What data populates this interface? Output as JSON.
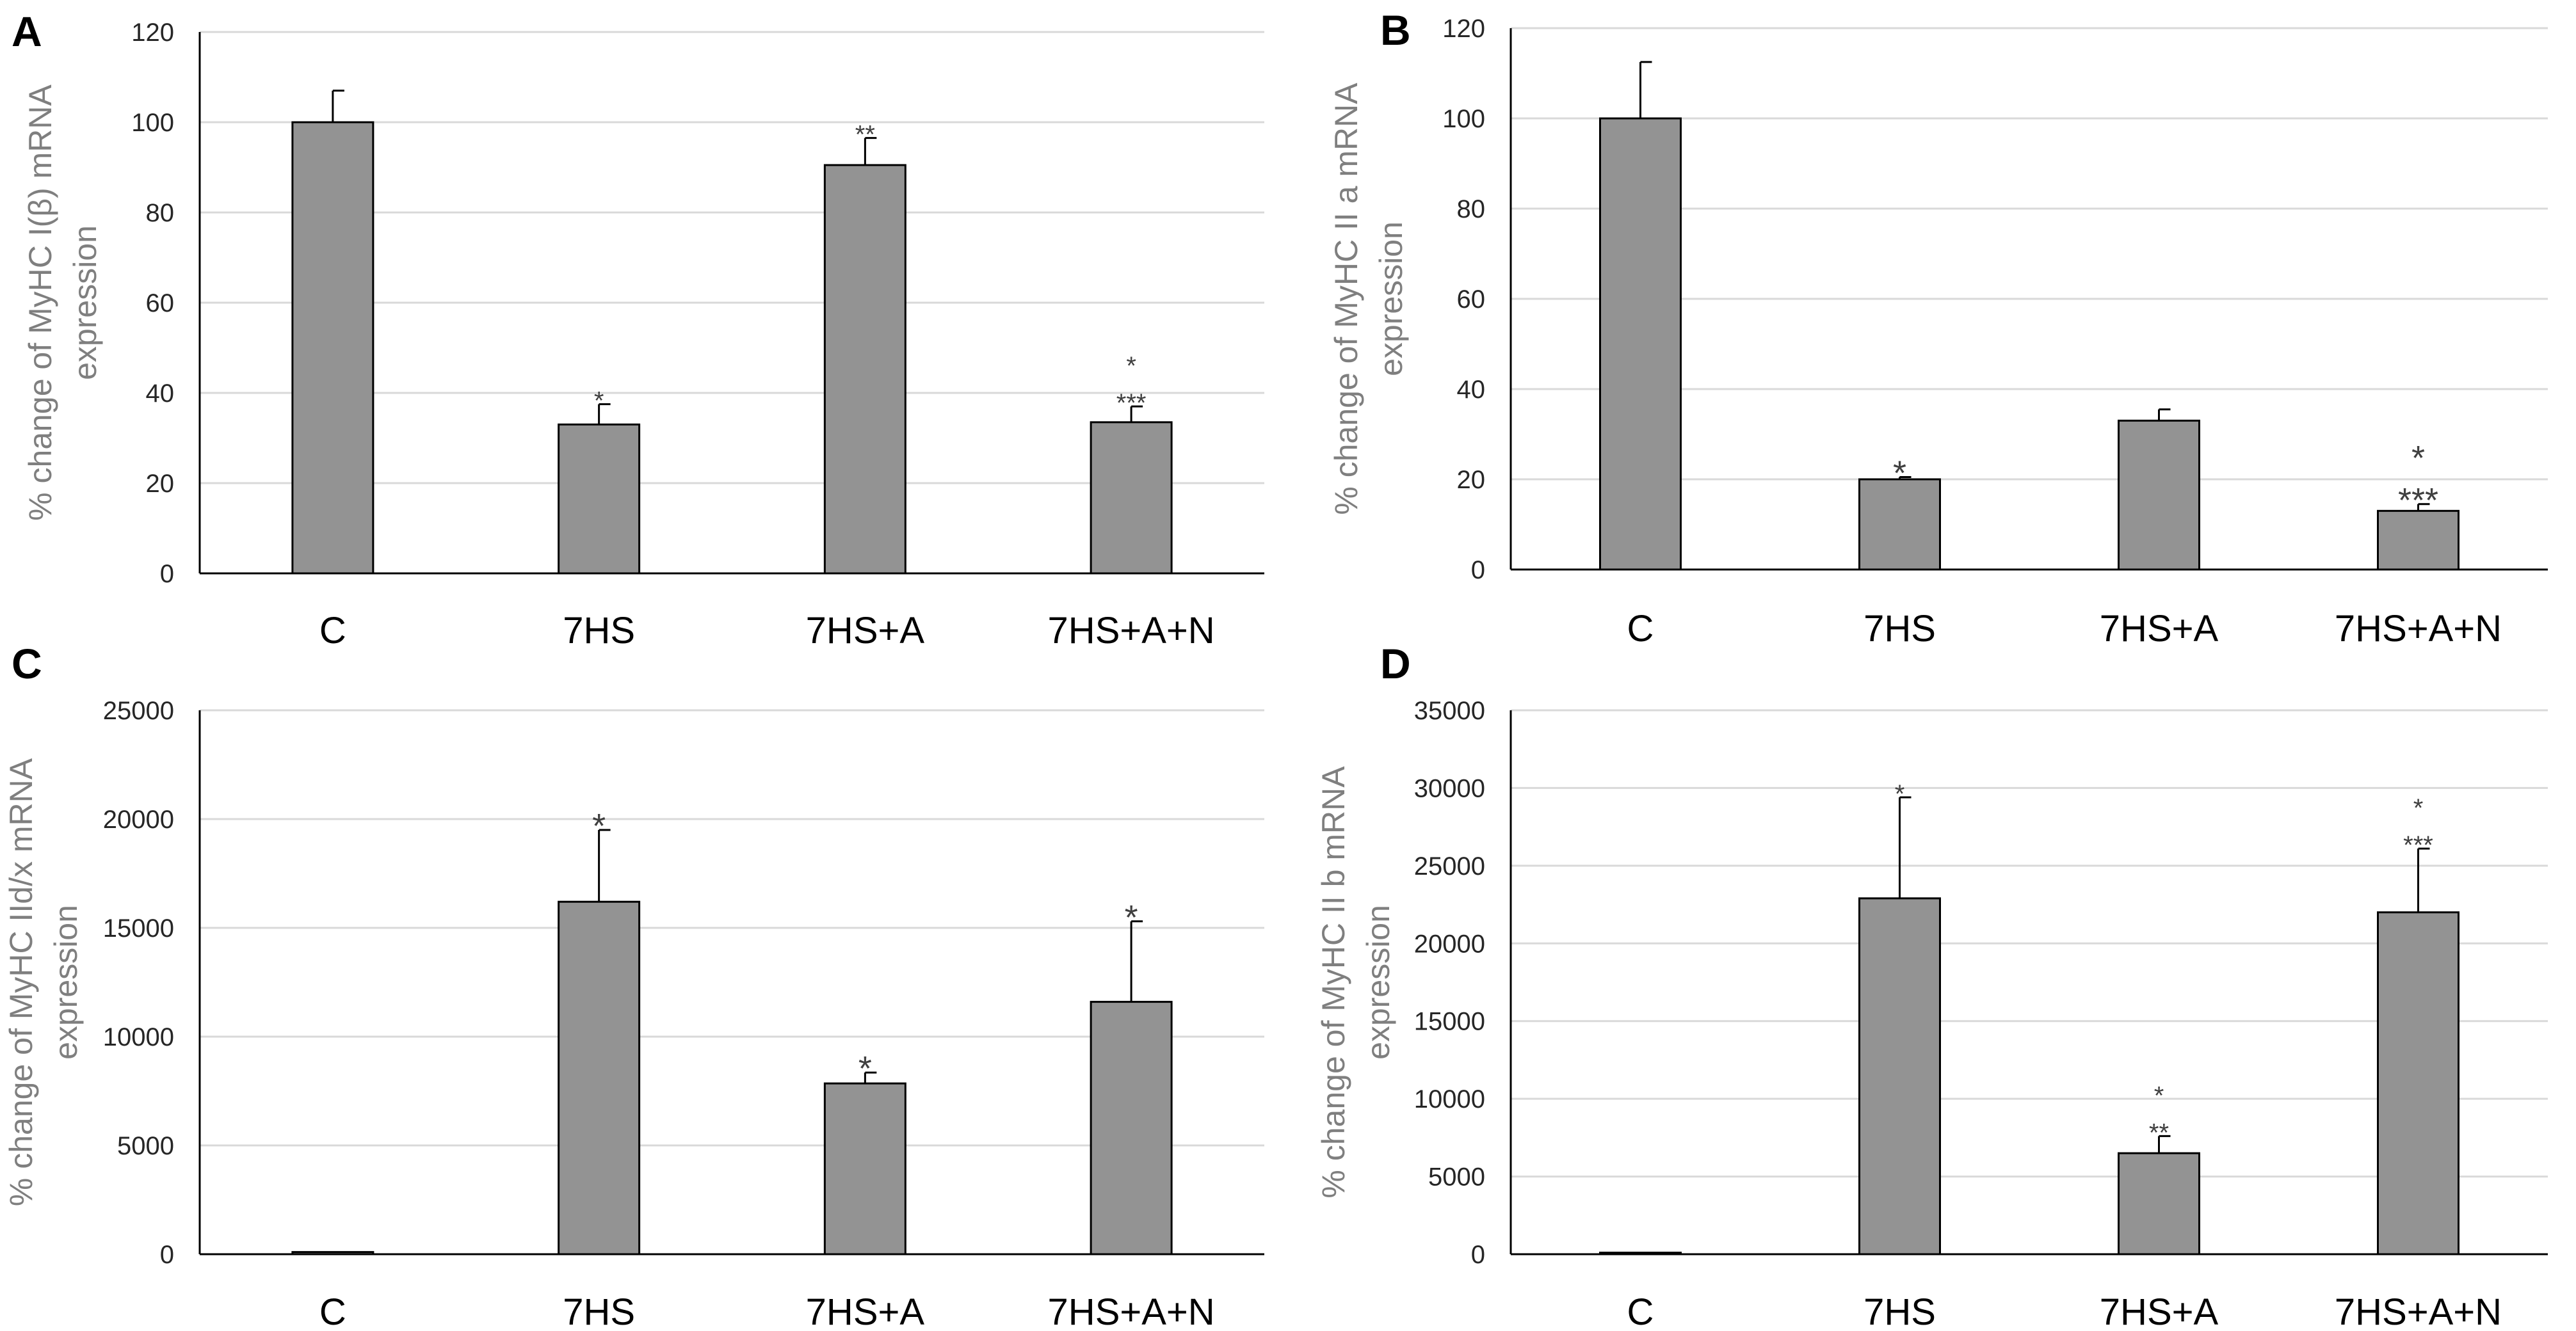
{
  "figure": {
    "bar_color": "#939393",
    "bar_edge_color": "#000000",
    "grid_color": "#d9d9d9",
    "axis_color": "#000000"
  },
  "chart_data": [
    {
      "panel": "A",
      "type": "bar",
      "ylabel_lines": [
        "% change  of MyHC I(β) mRNA",
        "expression"
      ],
      "categories": [
        "C",
        "7HS",
        "7HS+A",
        "7HS+A+N"
      ],
      "values": [
        100,
        33,
        90.5,
        33.5
      ],
      "errors": [
        7,
        4.5,
        6,
        3.5
      ],
      "annotations": [
        [],
        [
          "*"
        ],
        [
          "**"
        ],
        [
          "*",
          "***"
        ]
      ],
      "ylim": [
        0,
        120
      ],
      "yticks": [
        0,
        20,
        40,
        60,
        80,
        100,
        120
      ],
      "grid": true
    },
    {
      "panel": "B",
      "type": "bar",
      "ylabel_lines": [
        "% change  of MyHC II a mRNA",
        "expression"
      ],
      "categories": [
        "C",
        "7HS",
        "7HS+A",
        "7HS+A+N"
      ],
      "values": [
        100,
        20,
        33,
        13
      ],
      "errors": [
        12.5,
        0.5,
        2.5,
        1.5
      ],
      "annotations": [
        [],
        [
          "*"
        ],
        [],
        [
          "*",
          "***"
        ]
      ],
      "ylim": [
        0,
        120
      ],
      "yticks": [
        0,
        20,
        40,
        60,
        80,
        100,
        120
      ],
      "grid": true
    },
    {
      "panel": "C",
      "type": "bar",
      "ylabel_lines": [
        "% change  of MyHC IId/x mRNA",
        "expression"
      ],
      "categories": [
        "C",
        "7HS",
        "7HS+A",
        "7HS+A+N"
      ],
      "values": [
        100,
        16200,
        7850,
        11600
      ],
      "errors": [
        0,
        3300,
        500,
        3700
      ],
      "annotations": [
        [],
        [
          "*"
        ],
        [
          "*"
        ],
        [
          "*"
        ]
      ],
      "ylim": [
        0,
        25000
      ],
      "yticks": [
        0,
        5000,
        10000,
        15000,
        20000,
        25000
      ],
      "grid": true
    },
    {
      "panel": "D",
      "type": "bar",
      "ylabel_lines": [
        "% change  of MyHC II b mRNA",
        "expression"
      ],
      "categories": [
        "C",
        "7HS",
        "7HS+A",
        "7HS+A+N"
      ],
      "values": [
        100,
        22900,
        6500,
        22000
      ],
      "errors": [
        0,
        6500,
        1100,
        4100
      ],
      "annotations": [
        [],
        [
          "*"
        ],
        [
          "*",
          "**"
        ],
        [
          "*",
          "***"
        ]
      ],
      "ylim": [
        0,
        35000
      ],
      "yticks": [
        0,
        5000,
        10000,
        15000,
        20000,
        25000,
        30000,
        35000
      ],
      "grid": true
    }
  ]
}
